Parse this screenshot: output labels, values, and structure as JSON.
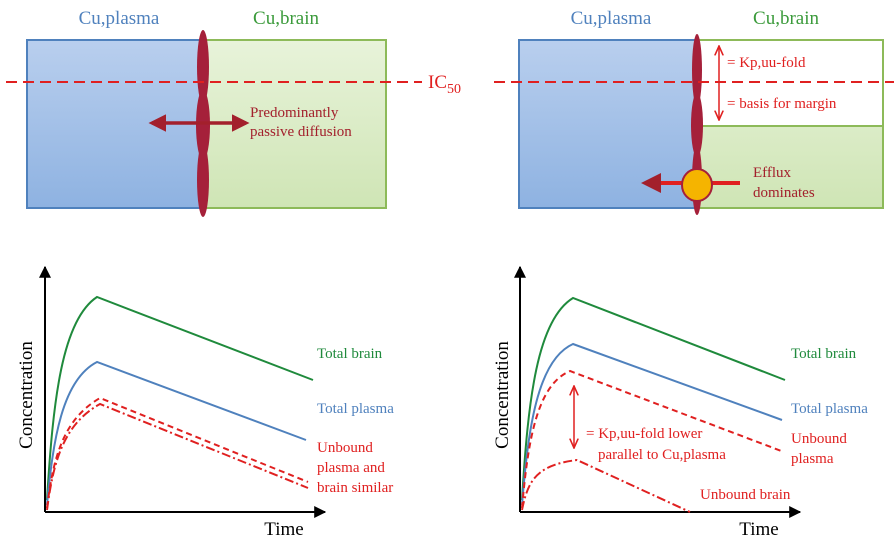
{
  "colors": {
    "plasma": "#4f81bd",
    "brain": "#3a9a3a",
    "red": "#e02020",
    "dark_red": "#a3202c",
    "membrane": "#a5203a",
    "transporter": "#f5b400",
    "axis": "#000000"
  },
  "top_left": {
    "plasma_label": "Cu,plasma",
    "brain_label": "Cu,brain",
    "arrow_label_line1": "Predominantly",
    "arrow_label_line2": "passive diffusion"
  },
  "ic50": {
    "main": "IC",
    "sub": "50"
  },
  "top_right": {
    "plasma_label": "Cu,plasma",
    "brain_label": "Cu,brain",
    "kp_label": "= Kp,uu-fold",
    "margin_label": "= basis for margin",
    "efflux_line1": "Efflux",
    "efflux_line2": "dominates"
  },
  "bottom_left": {
    "ylabel": "Concentration",
    "xlabel": "Time",
    "total_brain": "Total brain",
    "total_plasma": "Total plasma",
    "unbound_line1": "Unbound",
    "unbound_line2": "plasma and",
    "unbound_line3": "brain similar"
  },
  "bottom_right": {
    "ylabel": "Concentration",
    "xlabel": "Time",
    "total_brain": "Total brain",
    "total_plasma": "Total plasma",
    "annot_line1": "= Kp,uu-fold lower",
    "annot_line2": "parallel to Cu,plasma",
    "unbound_plasma_line1": "Unbound",
    "unbound_plasma_line2": "plasma",
    "unbound_brain": "Unbound brain"
  }
}
